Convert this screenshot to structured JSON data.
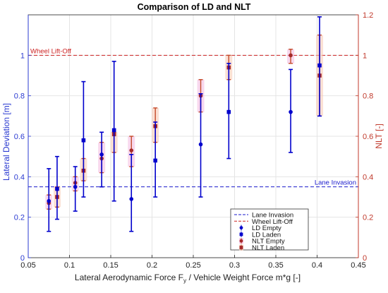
{
  "chart_data": {
    "type": "scatter",
    "title": "Comparison of LD and NLT",
    "xlabel": "Lateral Aerodynamic Force F",
    "xlabel_sub": "y",
    "xlabel_rest": " / Vehicle Weight Force m*g [-]",
    "ylabel_left": "Lateral Deviation [m]",
    "ylabel_right": "NLT [-]",
    "xlim": [
      0.05,
      0.45
    ],
    "ylim_left": [
      0,
      1.2
    ],
    "ylim_right": [
      0,
      1.2
    ],
    "xticks": [
      "0.05",
      "0.1",
      "0.15",
      "0.2",
      "0.25",
      "0.3",
      "0.35",
      "0.4",
      "0.45"
    ],
    "yticks_left": [
      "0",
      "0.2",
      "0.4",
      "0.6",
      "0.8",
      "1"
    ],
    "yticks_right": [
      "0",
      "0.2",
      "0.4",
      "0.6",
      "0.8",
      "1",
      "1.2"
    ],
    "grid": true,
    "colors": {
      "ld": "#0000cc",
      "nlt": "#a52a2a",
      "left_axis": "#2b3bd1",
      "right_axis": "#c0392b",
      "lane": "#1a1acc",
      "wheel": "#cc2222",
      "nlt_err": "#c44a2a"
    },
    "reference_lines": [
      {
        "name": "Lane Invasion",
        "axis": "left",
        "value": 0.35,
        "label": "Lane Invasion"
      },
      {
        "name": "Wheel Lift-Off",
        "axis": "right",
        "value": 1.0,
        "label": "Wheel Lift-Off"
      }
    ],
    "series": [
      {
        "name": "LD Empty",
        "axis": "left",
        "points": [
          {
            "x": 0.075,
            "y": 0.28,
            "lo": 0.13,
            "hi": 0.44
          },
          {
            "x": 0.107,
            "y": 0.35,
            "lo": 0.23,
            "hi": 0.45
          },
          {
            "x": 0.139,
            "y": 0.51,
            "lo": 0.35,
            "hi": 0.62
          },
          {
            "x": 0.175,
            "y": 0.29,
            "lo": 0.13,
            "hi": 0.51
          },
          {
            "x": 0.259,
            "y": 0.56,
            "lo": 0.3,
            "hi": 0.81
          },
          {
            "x": 0.368,
            "y": 0.72,
            "lo": 0.52,
            "hi": 0.93
          }
        ]
      },
      {
        "name": "LD Laden",
        "axis": "left",
        "points": [
          {
            "x": 0.085,
            "y": 0.34,
            "lo": 0.19,
            "hi": 0.5
          },
          {
            "x": 0.117,
            "y": 0.58,
            "lo": 0.3,
            "hi": 0.87
          },
          {
            "x": 0.154,
            "y": 0.63,
            "lo": 0.28,
            "hi": 0.97
          },
          {
            "x": 0.204,
            "y": 0.48,
            "lo": 0.3,
            "hi": 0.67
          },
          {
            "x": 0.293,
            "y": 0.72,
            "lo": 0.49,
            "hi": 0.96
          },
          {
            "x": 0.403,
            "y": 0.95,
            "lo": 0.7,
            "hi": 1.19
          }
        ]
      },
      {
        "name": "NLT Empty",
        "axis": "right",
        "points": [
          {
            "x": 0.075,
            "y": 0.27,
            "lo": 0.24,
            "hi": 0.31
          },
          {
            "x": 0.107,
            "y": 0.37,
            "lo": 0.33,
            "hi": 0.4
          },
          {
            "x": 0.139,
            "y": 0.49,
            "lo": 0.42,
            "hi": 0.57
          },
          {
            "x": 0.175,
            "y": 0.53,
            "lo": 0.45,
            "hi": 0.6
          },
          {
            "x": 0.259,
            "y": 0.8,
            "lo": 0.72,
            "hi": 0.88
          },
          {
            "x": 0.368,
            "y": 1.0,
            "lo": 0.96,
            "hi": 1.03
          }
        ]
      },
      {
        "name": "NLT Laden",
        "axis": "right",
        "points": [
          {
            "x": 0.085,
            "y": 0.3,
            "lo": 0.25,
            "hi": 0.35
          },
          {
            "x": 0.117,
            "y": 0.43,
            "lo": 0.38,
            "hi": 0.49
          },
          {
            "x": 0.154,
            "y": 0.61,
            "lo": 0.52,
            "hi": 0.62
          },
          {
            "x": 0.204,
            "y": 0.65,
            "lo": 0.57,
            "hi": 0.74
          },
          {
            "x": 0.293,
            "y": 0.94,
            "lo": 0.88,
            "hi": 1.0
          },
          {
            "x": 0.403,
            "y": 0.9,
            "lo": 0.7,
            "hi": 1.1
          }
        ]
      }
    ],
    "legend": {
      "position": "lower-right-center",
      "entries": [
        "Lane Invasion",
        "Wheel Lift-Off",
        "LD Empty",
        "LD Laden",
        "NLT Empty",
        "NLT Laden"
      ]
    }
  }
}
